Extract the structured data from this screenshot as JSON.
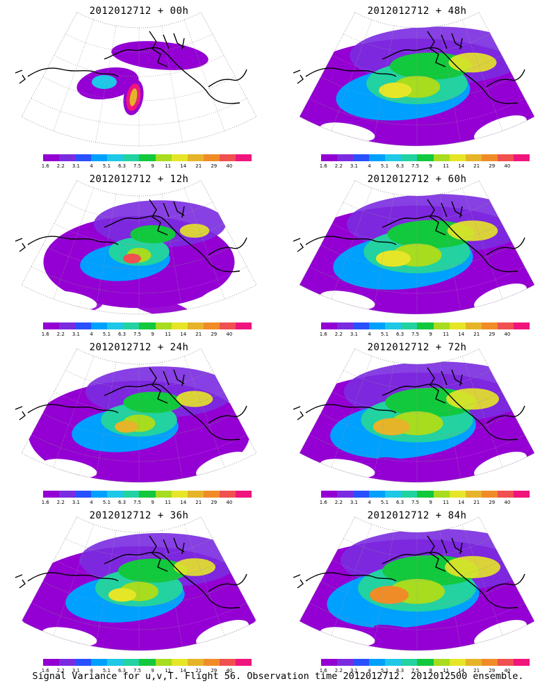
{
  "panels": [
    {
      "title": "2012012712 + 00h",
      "spread": 0.0,
      "peak": 12
    },
    {
      "title": "2012012712 + 48h",
      "spread": 0.78,
      "peak": 8
    },
    {
      "title": "2012012712 + 12h",
      "spread": 0.25,
      "peak": 11
    },
    {
      "title": "2012012712 + 60h",
      "spread": 0.85,
      "peak": 8
    },
    {
      "title": "2012012712 + 24h",
      "spread": 0.45,
      "peak": 9
    },
    {
      "title": "2012012712 + 72h",
      "spread": 0.92,
      "peak": 9
    },
    {
      "title": "2012012712 + 36h",
      "spread": 0.6,
      "peak": 8
    },
    {
      "title": "2012012712 + 84h",
      "spread": 1.0,
      "peak": 10
    }
  ],
  "colorbar": {
    "labels": [
      "1.6",
      "2.2",
      "3.1",
      "4",
      "5.1",
      "6.3",
      "7.5",
      "9",
      "11",
      "14",
      "21",
      "29",
      "40"
    ],
    "colors": [
      "#9400d3",
      "#7a2be0",
      "#2850ff",
      "#00a0ff",
      "#1ec8e6",
      "#22d2a0",
      "#12c83c",
      "#a8dc1e",
      "#e6e628",
      "#e6b428",
      "#f08c28",
      "#f05050",
      "#f0147d"
    ]
  },
  "footer": "Signal Variance for u,v,T. Flight 56. Observation time 2012012712. 2012012500 ensemble."
}
